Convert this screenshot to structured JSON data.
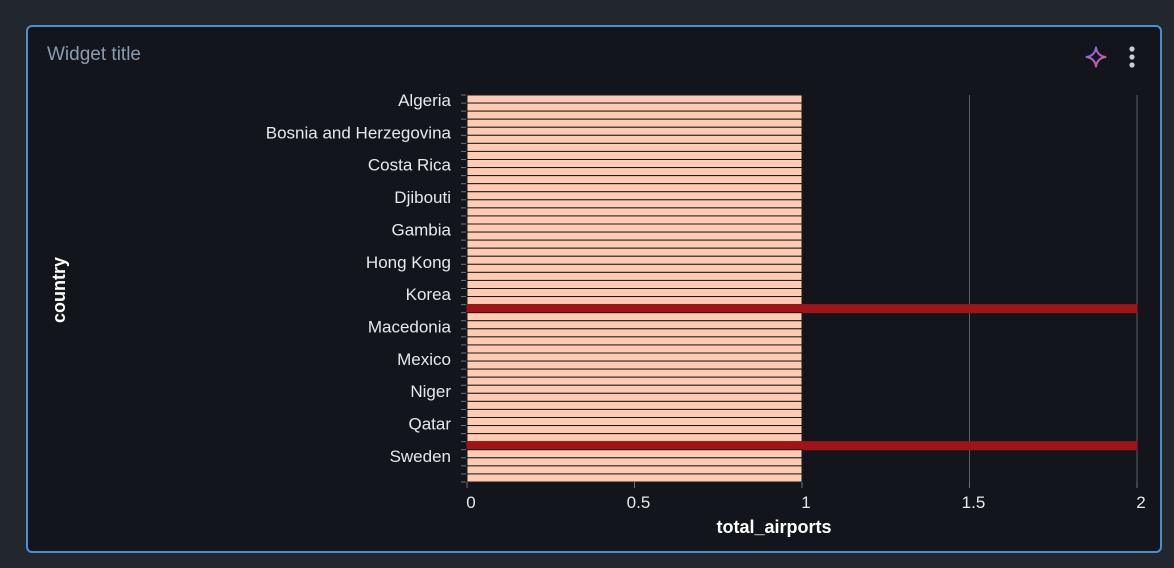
{
  "widget": {
    "title": "Widget title",
    "ai_icon": "sparkle-icon",
    "menu_icon": "kebab-menu-icon"
  },
  "chart_data": {
    "type": "bar",
    "orientation": "horizontal",
    "xlabel": "total_airports",
    "ylabel": "country",
    "xlim": [
      0,
      2
    ],
    "x_ticks": [
      "0",
      "0.5",
      "1",
      "1.5",
      "2"
    ],
    "grid": true,
    "visible_category_labels": [
      "Algeria",
      "Bosnia and Herzegovina",
      "Costa Rica",
      "Djibouti",
      "Gambia",
      "Hong Kong",
      "Korea",
      "Macedonia",
      "Mexico",
      "Niger",
      "Qatar",
      "Sweden"
    ],
    "category_count": 48,
    "values": [
      1,
      1,
      1,
      1,
      1,
      1,
      1,
      1,
      1,
      1,
      1,
      1,
      1,
      1,
      1,
      1,
      1,
      1,
      1,
      1,
      1,
      1,
      1,
      1,
      1,
      1,
      2,
      1,
      1,
      1,
      1,
      1,
      1,
      1,
      1,
      1,
      1,
      1,
      1,
      1,
      1,
      1,
      1,
      2,
      1,
      1,
      1,
      1
    ],
    "colors": {
      "bar_fill": "#ffccb3",
      "bar_stroke": "#1a1a1a",
      "highlight_fill": "#a01418",
      "grid": "#5a5f66",
      "panel_border": "#4a8fd6"
    }
  }
}
